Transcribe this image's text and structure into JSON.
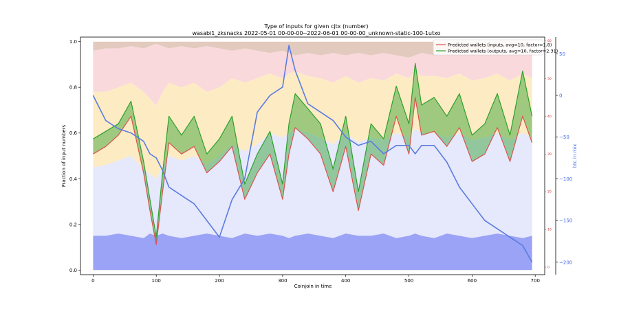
{
  "chart_data": {
    "type": "line",
    "title": "Type of inputs for given cjtx (number)",
    "subtitle": "wasabi1_zksnacks 2022-05-01 00-00-00--2022-06-01 00-00-00_unknown-static-100-1utxo",
    "xlabel": "Coinjoin in time",
    "ylabel": "Fraction of input numbers",
    "y2label": "btc in mix",
    "xlim": [
      -20,
      715
    ],
    "ylim": [
      -0.02,
      1.02
    ],
    "y2lim": [
      -215,
      70
    ],
    "y3lim": [
      -2,
      61
    ],
    "xticks": [
      0,
      100,
      200,
      300,
      400,
      500,
      600,
      700
    ],
    "yticks": [
      0.0,
      0.2,
      0.4,
      0.6,
      0.8,
      1.0
    ],
    "y2ticks": [
      -200,
      -150,
      -100,
      -50,
      0,
      50
    ],
    "y3ticks": [
      0,
      10,
      20,
      30,
      40,
      50,
      60
    ],
    "legend_position": "top-right",
    "legend": [
      "Predicted wallets (inputs, avg=10, factor=1.8)",
      "Predicted wallets (outputs, avg=10, factor=2.31)"
    ],
    "colors": {
      "inputs": "#d9534f",
      "outputs": "#2ca02c",
      "btc": "#5a7ce0",
      "stack_bottom": "#9aa3f5",
      "stack_mid": "#e6e8fb",
      "stack_yellow": "#fdebc4",
      "stack_pink": "#f9d9dc",
      "stack_top": "#d8b9a8"
    },
    "x": [
      0,
      20,
      40,
      60,
      80,
      90,
      100,
      110,
      120,
      140,
      160,
      180,
      200,
      220,
      240,
      260,
      280,
      300,
      310,
      320,
      340,
      360,
      380,
      400,
      420,
      440,
      460,
      480,
      500,
      510,
      520,
      540,
      560,
      580,
      600,
      620,
      640,
      660,
      680,
      695
    ],
    "series": [
      {
        "name": "Predicted wallets (inputs, avg=10, factor=1.8)",
        "axis": "y3",
        "values": [
          30,
          32,
          35,
          40,
          25,
          15,
          6,
          20,
          33,
          30,
          32,
          25,
          28,
          32,
          18,
          25,
          30,
          18,
          30,
          37,
          34,
          30,
          20,
          32,
          15,
          30,
          27,
          40,
          30,
          45,
          35,
          36,
          32,
          37,
          28,
          30,
          37,
          28,
          40,
          33
        ]
      },
      {
        "name": "Predicted wallets (outputs, avg=10, factor=2.31)",
        "axis": "y3",
        "values": [
          34,
          36,
          38,
          44,
          28,
          18,
          8,
          25,
          40,
          35,
          40,
          30,
          34,
          40,
          22,
          30,
          36,
          22,
          38,
          46,
          42,
          38,
          26,
          40,
          20,
          38,
          34,
          48,
          38,
          54,
          43,
          45,
          40,
          46,
          35,
          38,
          46,
          35,
          52,
          40
        ]
      },
      {
        "name": "btc in mix",
        "axis": "y2",
        "values": [
          0,
          -30,
          -40,
          -45,
          -55,
          -70,
          -75,
          -90,
          -110,
          -120,
          -130,
          -150,
          -170,
          -125,
          -100,
          -20,
          0,
          10,
          60,
          30,
          -10,
          -20,
          -30,
          -50,
          -60,
          -55,
          -70,
          -60,
          -60,
          -70,
          -60,
          -60,
          -80,
          -110,
          -130,
          -150,
          -160,
          -170,
          -180,
          -200
        ]
      }
    ],
    "stacked_fractions": {
      "bottom": [
        0.15,
        0.15,
        0.16,
        0.15,
        0.14,
        0.16,
        0.15,
        0.16,
        0.15,
        0.14,
        0.15,
        0.16,
        0.15,
        0.14,
        0.16,
        0.15,
        0.16,
        0.15,
        0.14,
        0.15,
        0.16,
        0.15,
        0.14,
        0.16,
        0.15,
        0.15,
        0.16,
        0.14,
        0.15,
        0.16,
        0.15,
        0.14,
        0.16,
        0.15,
        0.14,
        0.15,
        0.16,
        0.15,
        0.14,
        0.15
      ],
      "mid_top": [
        0.45,
        0.46,
        0.48,
        0.5,
        0.44,
        0.42,
        0.4,
        0.45,
        0.5,
        0.48,
        0.5,
        0.46,
        0.5,
        0.55,
        0.52,
        0.55,
        0.6,
        0.58,
        0.6,
        0.62,
        0.6,
        0.58,
        0.55,
        0.6,
        0.56,
        0.58,
        0.57,
        0.6,
        0.58,
        0.62,
        0.6,
        0.6,
        0.58,
        0.6,
        0.57,
        0.58,
        0.6,
        0.57,
        0.6,
        0.58
      ],
      "yellow_top": [
        0.78,
        0.78,
        0.8,
        0.82,
        0.78,
        0.75,
        0.72,
        0.78,
        0.82,
        0.8,
        0.82,
        0.78,
        0.8,
        0.84,
        0.82,
        0.84,
        0.86,
        0.84,
        0.86,
        0.87,
        0.85,
        0.84,
        0.82,
        0.85,
        0.82,
        0.84,
        0.83,
        0.86,
        0.84,
        0.87,
        0.85,
        0.85,
        0.84,
        0.86,
        0.83,
        0.84,
        0.86,
        0.83,
        0.86,
        0.84
      ],
      "pink_top": [
        0.96,
        0.97,
        0.97,
        0.98,
        0.97,
        0.98,
        0.99,
        0.98,
        0.97,
        0.98,
        0.97,
        0.98,
        0.97,
        0.96,
        0.97,
        0.96,
        0.95,
        0.96,
        0.95,
        0.94,
        0.95,
        0.94,
        0.95,
        0.94,
        0.95,
        0.94,
        0.95,
        0.94,
        0.93,
        0.94,
        0.95,
        0.94,
        0.95,
        0.96,
        0.96,
        0.97,
        0.97,
        0.98,
        0.98,
        0.99
      ]
    }
  }
}
